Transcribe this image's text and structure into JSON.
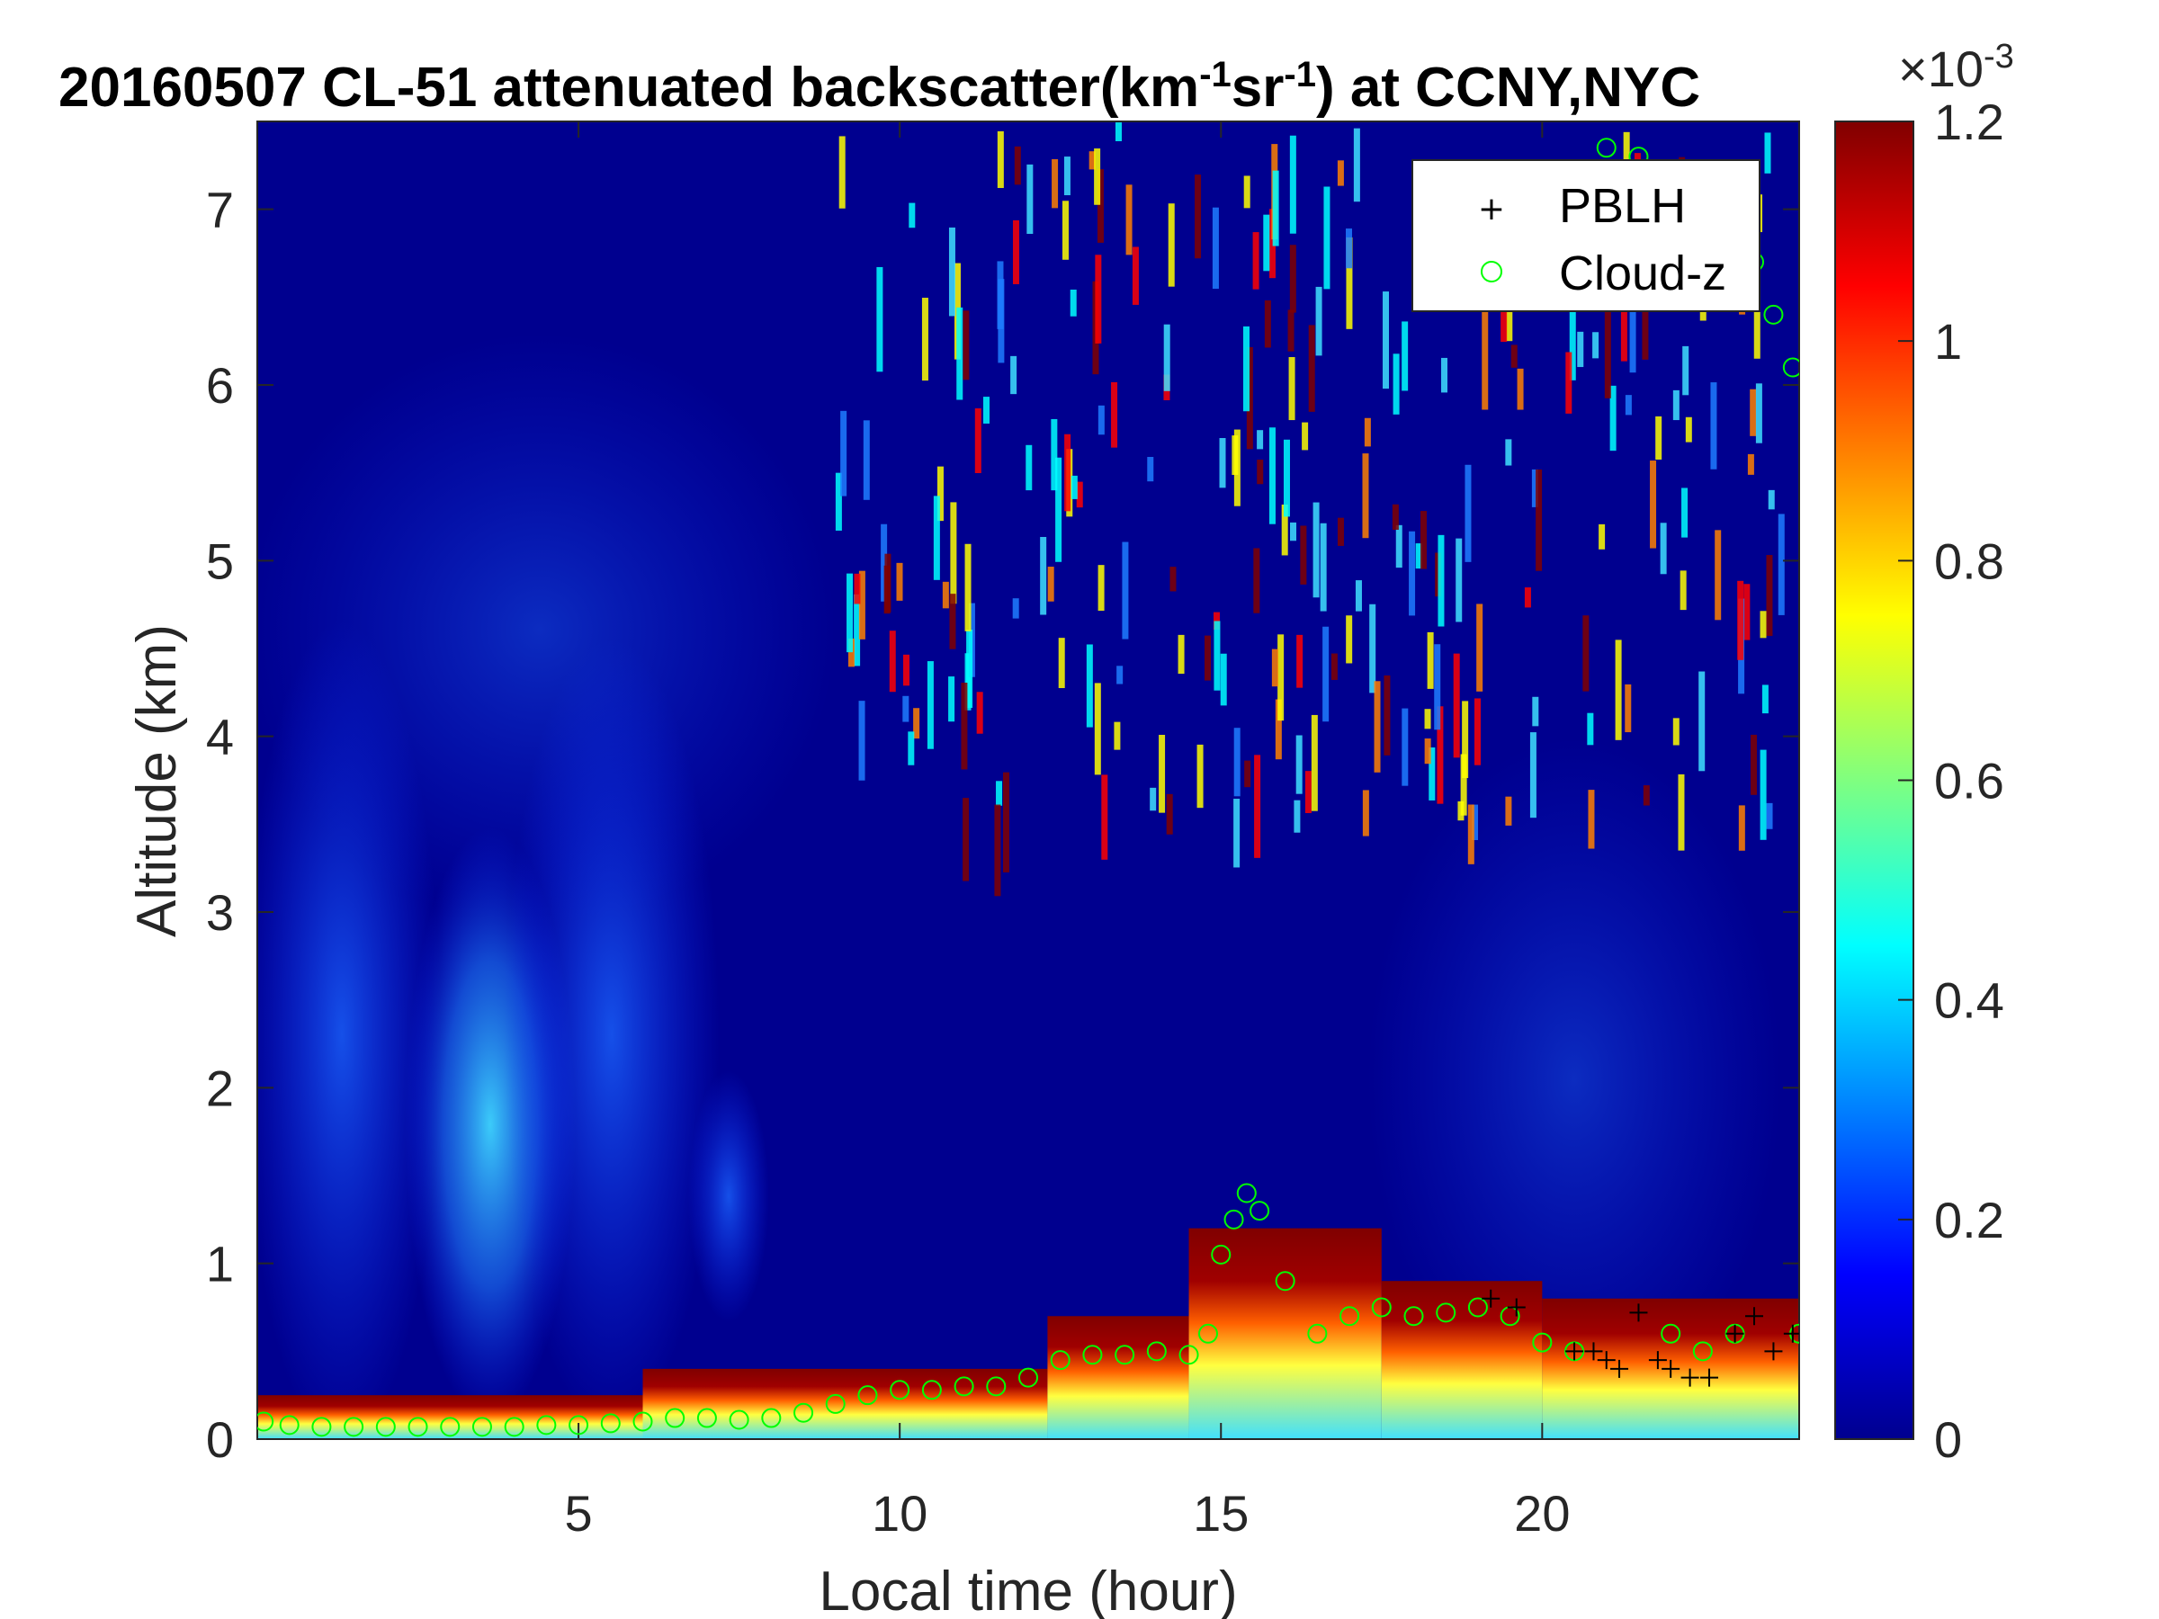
{
  "chart_data": {
    "type": "heatmap",
    "title": {
      "pre": "20160507  CL-51 attenuated backscatter(km",
      "sup1": "-1",
      "mid": "sr",
      "sup2": "-1",
      "post": ") at CCNY,NYC"
    },
    "xlabel": "Local time (hour)",
    "ylabel": "Altitude (km)",
    "xlim": [
      0,
      24
    ],
    "ylim": [
      0,
      7.5
    ],
    "xticks": [
      5,
      10,
      15,
      20
    ],
    "yticks": [
      0,
      1,
      2,
      3,
      4,
      5,
      6,
      7
    ],
    "colorbar": {
      "colormap": "jet",
      "clim": [
        0,
        0.0012
      ],
      "ticks": [
        0,
        0.2,
        0.4,
        0.6,
        0.8,
        1,
        1.2
      ],
      "multiplier": "×10",
      "exponent": "-3"
    },
    "legend": {
      "location": "top-right",
      "entries": [
        {
          "label": "PBLH",
          "marker": "+",
          "color": "#000000"
        },
        {
          "label": "Cloud-z",
          "marker": "o",
          "color": "#00ff00"
        }
      ]
    },
    "background_layer": [
      {
        "x0": 0,
        "x1": 6,
        "top": 0.25,
        "note": "thin near-surface layer"
      },
      {
        "x0": 6,
        "x1": 12.3,
        "top": 0.4
      },
      {
        "x0": 12.3,
        "x1": 14.5,
        "top": 0.7
      },
      {
        "x0": 14.5,
        "x1": 17.5,
        "top": 1.2
      },
      {
        "x0": 17.5,
        "x1": 20,
        "top": 0.9
      },
      {
        "x0": 20,
        "x1": 24,
        "top": 0.8
      }
    ],
    "series": [
      {
        "name": "Cloud-z",
        "x": [
          0.1,
          0.5,
          1,
          1.5,
          2,
          2.5,
          3,
          3.5,
          4,
          4.5,
          5,
          5.5,
          6,
          6.5,
          7,
          7.5,
          8,
          8.5,
          9,
          9.5,
          10,
          10.5,
          11,
          11.5,
          12,
          12.5,
          13,
          13.5,
          14,
          14.5,
          14.8,
          15,
          15.2,
          15.4,
          15.6,
          16,
          16.5,
          17,
          17.5,
          18,
          18.5,
          19,
          19.5,
          20,
          20.5,
          21,
          21.5,
          22,
          22.5,
          23,
          23.3,
          23.6,
          23.9,
          24
        ],
        "y": [
          0.1,
          0.08,
          0.07,
          0.07,
          0.07,
          0.07,
          0.07,
          0.07,
          0.07,
          0.08,
          0.08,
          0.09,
          0.1,
          0.12,
          0.12,
          0.11,
          0.12,
          0.15,
          0.2,
          0.25,
          0.28,
          0.28,
          0.3,
          0.3,
          0.35,
          0.45,
          0.48,
          0.48,
          0.5,
          0.48,
          0.6,
          1.05,
          1.25,
          1.4,
          1.3,
          0.9,
          0.6,
          0.7,
          0.75,
          0.7,
          0.72,
          0.75,
          0.7,
          0.55,
          0.5,
          7.35,
          7.3,
          0.6,
          0.5,
          0.6,
          6.7,
          6.4,
          6.1,
          0.6
        ]
      },
      {
        "name": "PBLH",
        "x": [
          19.2,
          19.6,
          20.5,
          20.8,
          21,
          21.2,
          21.5,
          21.8,
          22,
          22.3,
          22.6,
          23,
          23.3,
          23.6,
          23.9
        ],
        "y": [
          0.8,
          0.75,
          0.5,
          0.5,
          0.45,
          0.4,
          0.72,
          0.45,
          0.4,
          0.35,
          0.35,
          0.6,
          0.7,
          0.5,
          0.6
        ]
      }
    ]
  }
}
